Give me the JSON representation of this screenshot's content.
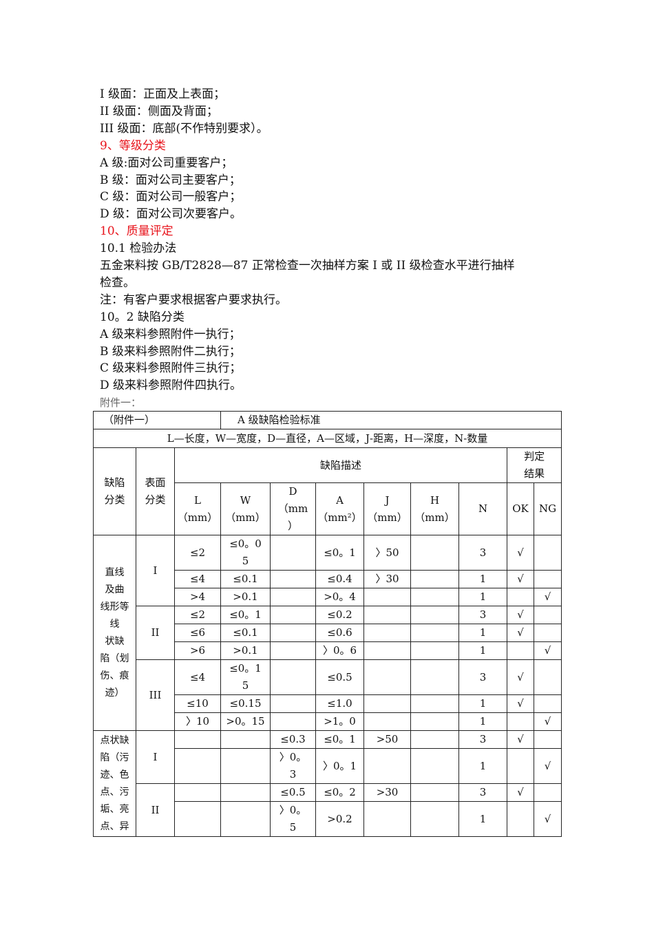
{
  "lines": [
    {
      "text": "I 级面：正面及上表面；",
      "style": "normal"
    },
    {
      "text": "II 级面：侧面及背面；",
      "style": "normal"
    },
    {
      "text": "III 级面：底部(不作特别要求）。",
      "style": "normal"
    },
    {
      "text": "9、等级分类",
      "style": "heading"
    },
    {
      "text": "A 级:面对公司重要客户；",
      "style": "normal"
    },
    {
      "text": "B 级：面对公司主要客户；",
      "style": "normal"
    },
    {
      "text": "C 级：面对公司一般客户；",
      "style": "normal"
    },
    {
      "text": "D 级：面对公司次要客户。",
      "style": "normal"
    },
    {
      "text": "10、质量评定",
      "style": "heading"
    },
    {
      "text": "10.1 检验办法",
      "style": "normal"
    },
    {
      "text": "五金来料按 GB/T2828—87 正常检查一次抽样方案 I 或 II 级检查水平进行抽样",
      "style": "normal"
    },
    {
      "text": "检查。",
      "style": "normal"
    },
    {
      "text": "注：有客户要求根据客户要求执行。",
      "style": "normal"
    },
    {
      "text": "10。2 缺陷分类",
      "style": "normal"
    },
    {
      "text": "A 级来料参照附件一执行；",
      "style": "normal"
    },
    {
      "text": "B 级来料参照附件二执行；",
      "style": "normal"
    },
    {
      "text": "C 级来料参照附件三执行；",
      "style": "normal"
    },
    {
      "text": "D 级来料参照附件四执行。",
      "style": "normal"
    },
    {
      "text": "附件一：",
      "style": "caption"
    }
  ],
  "colors": {
    "heading": "#e8141c"
  },
  "table": {
    "attachment": "（附件一）",
    "title": "A 级缺陷检验标准",
    "legend": "L—长度，W—宽度，D—直径，A—区域，J-距离，H—深度，N-数量",
    "defect_category": "缺陷\n分类",
    "surface_category": "表面\n分类",
    "defect_description": "缺陷描述",
    "result": "判定\n结果",
    "columns": [
      "L\n（mm）",
      "W\n（mm）",
      "D\n（mm\n）",
      "A\n（mm²）",
      "J\n（mm）",
      "H\n（mm）",
      "N",
      "OK",
      "NG"
    ],
    "groups": [
      {
        "category": "直线\n及曲\n线形等\n线\n状缺\n陷（划\n伤、痕\n迹）",
        "surfaces": [
          {
            "surface": "I",
            "rows": [
              [
                "≤2",
                "≤0。0\n5",
                "",
                "≤0。1",
                "〉50",
                "",
                "3",
                "√",
                ""
              ],
              [
                "≤4",
                "≤0.1",
                "",
                "≤0.4",
                "〉30",
                "",
                "1",
                "√",
                ""
              ],
              [
                ">4",
                ">0.1",
                "",
                ">0。4",
                "",
                "",
                "1",
                "",
                "√"
              ]
            ]
          },
          {
            "surface": "II",
            "rows": [
              [
                "≤2",
                "≤0。1",
                "",
                "≤0.2",
                "",
                "",
                "3",
                "√",
                ""
              ],
              [
                "≤6",
                "≤0.1",
                "",
                "≤0.6",
                "",
                "",
                "1",
                "√",
                ""
              ],
              [
                ">6",
                ">0.1",
                "",
                "〉0。6",
                "",
                "",
                "1",
                "",
                "√"
              ]
            ]
          },
          {
            "surface": "III",
            "rows": [
              [
                "≤4",
                "≤0。1\n5",
                "",
                "≤0.5",
                "",
                "",
                "3",
                "√",
                ""
              ],
              [
                "≤10",
                "≤0.15",
                "",
                "≤1.0",
                "",
                "",
                "1",
                "√",
                ""
              ],
              [
                "〉10",
                ">0。15",
                "",
                ">1。0",
                "",
                "",
                "1",
                "",
                "√"
              ]
            ]
          }
        ]
      },
      {
        "category": "点状缺\n陷（污\n迹、色\n点、污\n垢、亮\n点、异",
        "surfaces": [
          {
            "surface": "I",
            "rows": [
              [
                "",
                "",
                "≤0.3",
                "≤0。1",
                ">50",
                "",
                "3",
                "√",
                ""
              ],
              [
                "",
                "",
                "〉0。\n3",
                "〉0。1",
                "",
                "",
                "1",
                "",
                "√"
              ]
            ]
          },
          {
            "surface": "II",
            "rows": [
              [
                "",
                "",
                "≤0.5",
                "≤0。2",
                ">30",
                "",
                "3",
                "√",
                ""
              ],
              [
                "",
                "",
                "〉0。\n5",
                ">0.2",
                "",
                "",
                "1",
                "",
                "√"
              ]
            ]
          }
        ]
      }
    ]
  }
}
